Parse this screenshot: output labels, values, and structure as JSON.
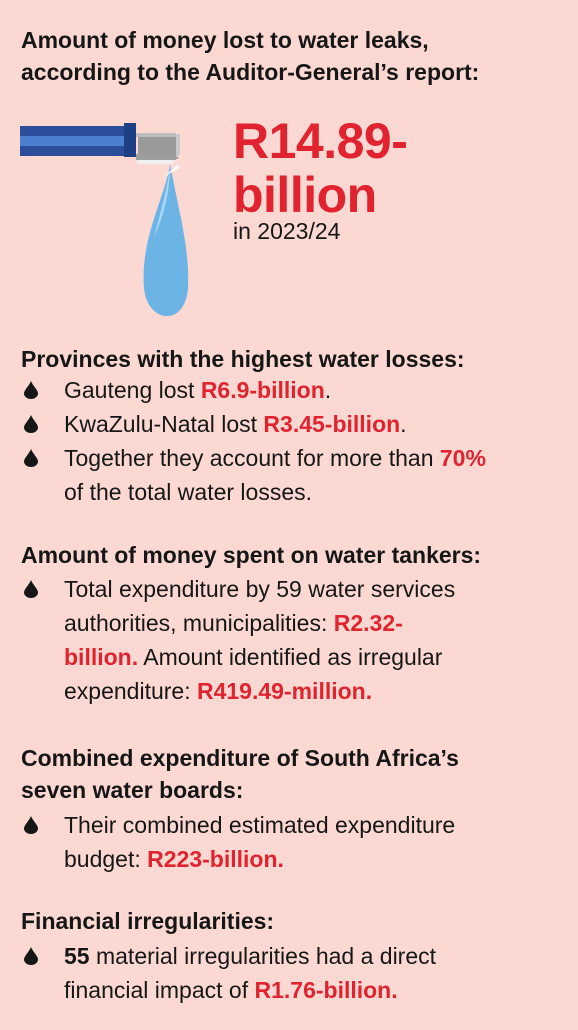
{
  "header": {
    "title_line1": "Amount of money lost to water leaks,",
    "title_line2": "according to the Auditor-General’s report:"
  },
  "hero": {
    "figure_line1": "R14.89-",
    "figure_line2": "billion",
    "period": "in 2023/24",
    "icon": "tap-pipe-water-drop-icon"
  },
  "provinces": {
    "heading": "Provinces with the highest water losses:",
    "items": [
      {
        "text": "Gauteng lost ",
        "value": "R6.9-billion",
        "suffix": "."
      },
      {
        "text": "KwaZulu-Natal lost ",
        "value": "R3.45-billion",
        "suffix": "."
      },
      {
        "text": "Together they account for more than ",
        "value": "70%",
        "suffix_line1": "",
        "line2": "of the total water losses."
      }
    ]
  },
  "tankers": {
    "heading": "Amount of money spent on water tankers:",
    "line1": "Total expenditure by 59 water services",
    "line2_text": "authorities, municipalities: ",
    "line2_value": "R2.32-",
    "line3_value": "billion.",
    "line3_text": " Amount identified as irregular",
    "line4_text": "expenditure: ",
    "line4_value": "R419.49-million."
  },
  "water_boards": {
    "heading_line1": "Combined expenditure of South Africa’s",
    "heading_line2": "seven water boards:",
    "line1": "Their combined estimated expenditure",
    "line2_text": "budget: ",
    "line2_value": "R223-billion."
  },
  "irregularities": {
    "heading": "Financial irregularities:",
    "line1_count": "55",
    "line1_text": " material irregularities had a direct",
    "line2_text": "financial impact of ",
    "line2_value": "R1.76-billion."
  },
  "colors": {
    "background": "#fbd9d2",
    "accent_red": "#e1232f",
    "text": "#161616",
    "pipe_blue": "#2a4e9a",
    "water_blue": "#6cb4e6"
  }
}
